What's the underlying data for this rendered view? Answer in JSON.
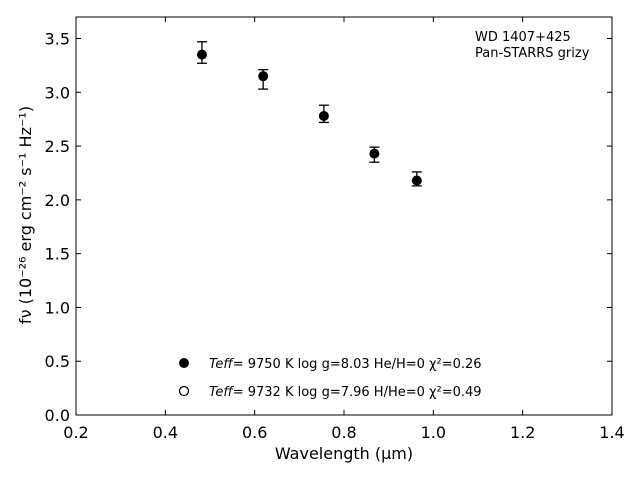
{
  "chart_data": {
    "type": "scatter",
    "xlabel": "Wavelength (μm)",
    "ylabel": "fν (10⁻²⁶ erg cm⁻² s⁻¹ Hz⁻¹)",
    "xlim": [
      0.2,
      1.4
    ],
    "ylim": [
      0.0,
      3.7
    ],
    "x_ticks": [
      0.2,
      0.4,
      0.6,
      0.8,
      1.0,
      1.2,
      1.4
    ],
    "x_tick_labels": [
      "0.2",
      "0.4",
      "0.6",
      "0.8",
      "1.0",
      "1.2",
      "1.4"
    ],
    "y_ticks": [
      0.0,
      0.5,
      1.0,
      1.5,
      2.0,
      2.5,
      3.0,
      3.5
    ],
    "y_tick_labels": [
      "0.0",
      "0.5",
      "1.0",
      "1.5",
      "2.0",
      "2.5",
      "3.0",
      "3.5"
    ],
    "grid": false,
    "annotation": [
      "WD 1407+425",
      "Pan-STARRS grizy"
    ],
    "series": [
      {
        "marker": "filled-circle",
        "color": "#000000",
        "points": [
          {
            "x": 0.482,
            "y": 3.35,
            "ylo": 3.27,
            "yhi": 3.47
          },
          {
            "x": 0.619,
            "y": 3.15,
            "ylo": 3.03,
            "yhi": 3.21
          },
          {
            "x": 0.755,
            "y": 2.78,
            "ylo": 2.72,
            "yhi": 2.88
          },
          {
            "x": 0.868,
            "y": 2.43,
            "ylo": 2.35,
            "yhi": 2.49
          },
          {
            "x": 0.963,
            "y": 2.18,
            "ylo": 2.13,
            "yhi": 2.26
          }
        ]
      }
    ],
    "legend": {
      "placement": "lower-center",
      "entries": [
        {
          "marker": "filled-circle",
          "teff_label": "Teff",
          "text": "=  9750 K  log g=8.03  He/H=0  χ²=0.26"
        },
        {
          "marker": "open-circle",
          "teff_label": "Teff",
          "text": "=  9732 K  log g=7.96  H/He=0  χ²=0.49"
        }
      ]
    }
  }
}
